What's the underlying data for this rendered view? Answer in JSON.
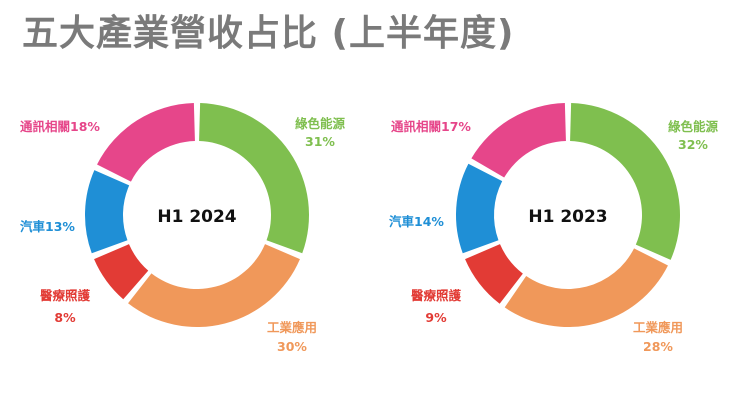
{
  "title": "五大產業營收占比 (上半年度)",
  "colors": {
    "green": "#7fbf4f",
    "orange": "#f0985a",
    "red": "#e23b35",
    "blue": "#1f8fd6",
    "pink": "#e6468a",
    "title": "#7a7a7a"
  },
  "chart_data": [
    {
      "type": "pie",
      "center_label": "H1 2024",
      "series": [
        {
          "name": "綠色能源",
          "value": 31,
          "label": "31%",
          "color": "#7fbf4f"
        },
        {
          "name": "工業應用",
          "value": 30,
          "label": "30%",
          "color": "#f0985a"
        },
        {
          "name": "醫療照護",
          "value": 8,
          "label": "8%",
          "color": "#e23b35"
        },
        {
          "name": "汽車",
          "value": 13,
          "label": "13%",
          "color": "#1f8fd6"
        },
        {
          "name": "通訊相關",
          "value": 18,
          "label": "18%",
          "color": "#e6468a"
        }
      ]
    },
    {
      "type": "pie",
      "center_label": "H1 2023",
      "series": [
        {
          "name": "綠色能源",
          "value": 32,
          "label": "32%",
          "color": "#7fbf4f"
        },
        {
          "name": "工業應用",
          "value": 28,
          "label": "28%",
          "color": "#f0985a"
        },
        {
          "name": "醫療照護",
          "value": 9,
          "label": "9%",
          "color": "#e23b35"
        },
        {
          "name": "汽車",
          "value": 14,
          "label": "14%",
          "color": "#1f8fd6"
        },
        {
          "name": "通訊相關",
          "value": 17,
          "label": "17%",
          "color": "#e6468a"
        }
      ]
    }
  ]
}
